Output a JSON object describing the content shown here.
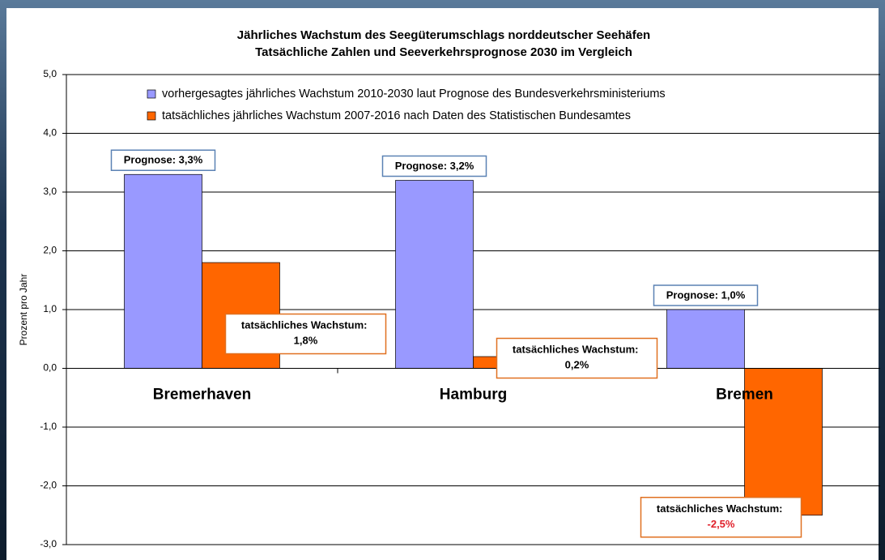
{
  "chart_data": {
    "type": "bar",
    "title": "Jährliches Wachstum des Seegüterumschlags norddeutscher Seehäfen",
    "subtitle": "Tatsächliche Zahlen und Seeverkehrsprognose 2030 im Vergleich",
    "y_label": "Prozent pro Jahr",
    "categories": [
      "Bremerhaven",
      "Hamburg",
      "Bremen"
    ],
    "series": [
      {
        "name": "vorhergesagtes jährliches Wachstum 2010-2030 laut Prognose des Bundesverkehrsministeriums",
        "color": "#9999ff",
        "values": [
          3.3,
          3.2,
          1.0
        ],
        "value_labels": [
          "Prognose: 3,3%",
          "Prognose: 3,2%",
          "Prognose: 1,0%"
        ]
      },
      {
        "name": "tatsächliches jährliches Wachstum 2007-2016 nach Daten des Statistischen Bundesamtes",
        "color": "#ff6600",
        "values": [
          1.8,
          0.2,
          -2.5
        ],
        "value_labels": [
          "tatsächliches Wachstum: 1,8%",
          "tatsächliches Wachstum: 0,2%",
          "tatsächliches Wachstum: -2,5%"
        ]
      }
    ],
    "ylim": [
      -3,
      5
    ],
    "yticks": [
      {
        "value": -3,
        "label": "-3,0"
      },
      {
        "value": -2,
        "label": "-2,0"
      },
      {
        "value": -1,
        "label": "-1,0"
      },
      {
        "value": 0,
        "label": "0,0"
      },
      {
        "value": 1,
        "label": "1,0"
      },
      {
        "value": 2,
        "label": "2,0"
      },
      {
        "value": 3,
        "label": "3,0"
      },
      {
        "value": 4,
        "label": "4,0"
      },
      {
        "value": 5,
        "label": "5,0"
      }
    ],
    "grid": true
  }
}
